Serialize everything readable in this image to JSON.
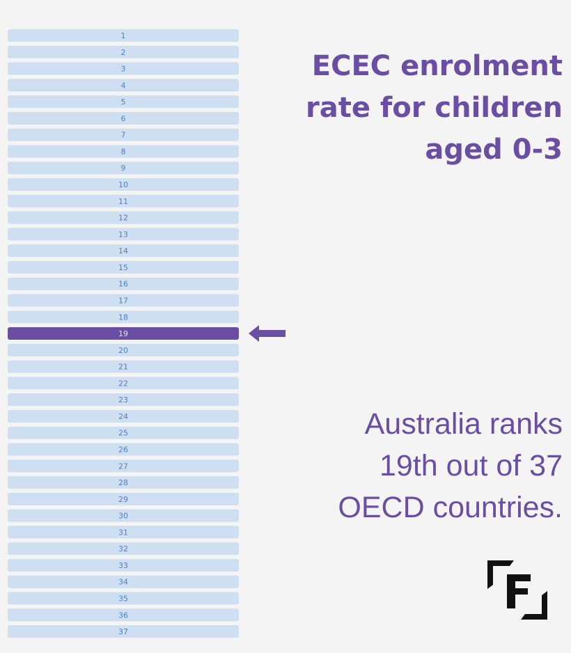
{
  "title_lines": [
    "ECEC enrolment",
    "rate for children",
    "aged 0-3"
  ],
  "rank_list": {
    "ranks": [
      1,
      2,
      3,
      4,
      5,
      6,
      7,
      8,
      9,
      10,
      11,
      12,
      13,
      14,
      15,
      16,
      17,
      18,
      19,
      20,
      21,
      22,
      23,
      24,
      25,
      26,
      27,
      28,
      29,
      30,
      31,
      32,
      33,
      34,
      35,
      36,
      37
    ],
    "highlight": 19,
    "row_color": "#cddff1",
    "text_color": "#4d80c4",
    "highlight_color": "#6a4ea3",
    "highlight_text_color": "#e6e0f3"
  },
  "caption_lines": [
    "Australia ranks",
    "19th out of 37",
    "OECD countries."
  ]
}
